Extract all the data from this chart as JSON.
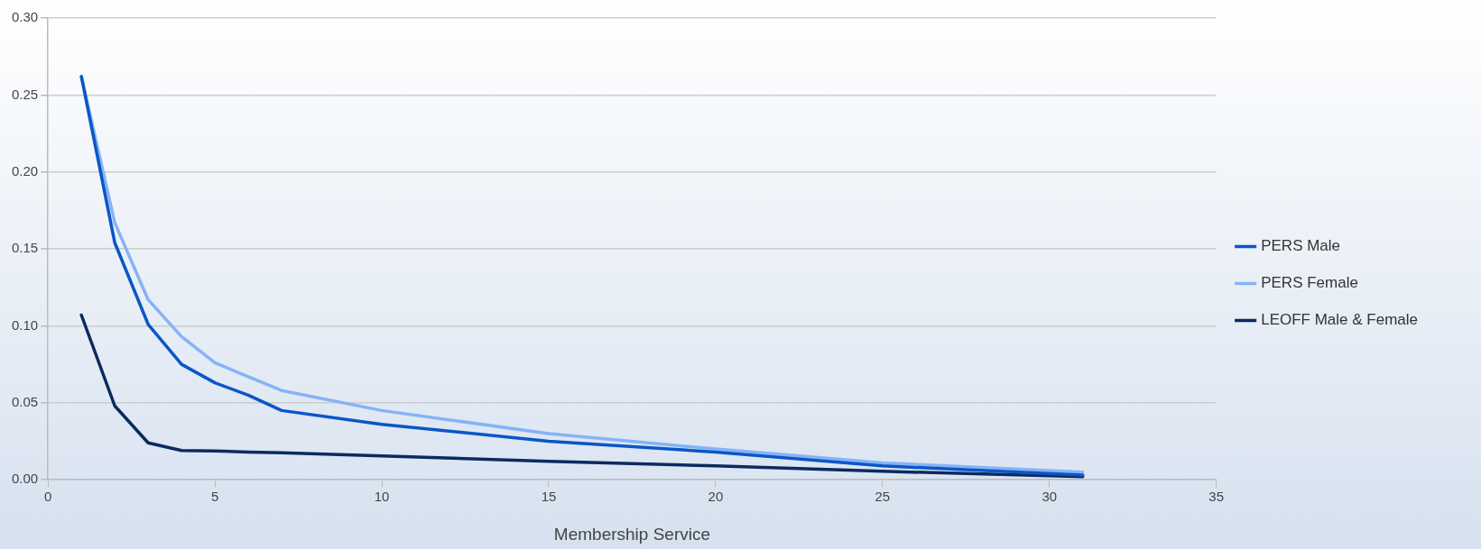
{
  "chart_data": {
    "type": "line",
    "xlabel": "Membership Service",
    "x": [
      1,
      2,
      3,
      4,
      5,
      6,
      7,
      10,
      15,
      20,
      25,
      31
    ],
    "series": [
      {
        "name": "PERS Male",
        "color": "#0a56c8",
        "values": [
          0.262,
          0.154,
          0.101,
          0.075,
          0.063,
          0.055,
          0.045,
          0.036,
          0.025,
          0.018,
          0.009,
          0.003
        ]
      },
      {
        "name": "PERS Female",
        "color": "#86b3f7",
        "values": [
          0.262,
          0.167,
          0.117,
          0.093,
          0.076,
          0.067,
          0.058,
          0.045,
          0.03,
          0.02,
          0.011,
          0.005
        ]
      },
      {
        "name": "LEOFF Male & Female",
        "color": "#0b2a60",
        "values": [
          0.107,
          0.048,
          0.024,
          0.019,
          0.0187,
          0.018,
          0.0175,
          0.0155,
          0.012,
          0.009,
          0.0055,
          0.002
        ]
      }
    ],
    "xlim": [
      0,
      35
    ],
    "xticks": [
      0,
      5,
      10,
      15,
      20,
      25,
      30,
      35
    ],
    "ylim": [
      0,
      0.3
    ],
    "yticks": [
      {
        "value": 0,
        "label": "0.00"
      },
      {
        "value": 0.05,
        "label": "0.05"
      },
      {
        "value": 0.1,
        "label": "0.10"
      },
      {
        "value": 0.15,
        "label": "0.15"
      },
      {
        "value": 0.2,
        "label": "0.20"
      },
      {
        "value": 0.25,
        "label": "0.25"
      },
      {
        "value": 0.3,
        "label": "0.30"
      }
    ],
    "grid": "y",
    "legend": "right",
    "marker": "none",
    "line_style": "solid"
  }
}
